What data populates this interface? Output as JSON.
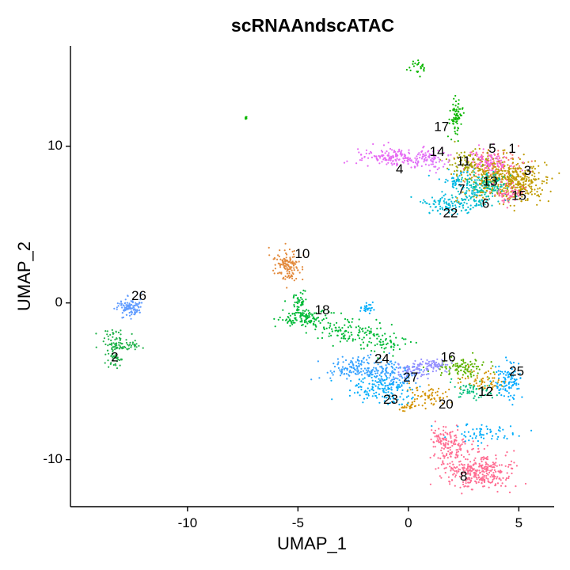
{
  "chart_data": {
    "type": "scatter",
    "title": "scRNAAndscATAC",
    "xlabel": "UMAP_1",
    "ylabel": "UMAP_2",
    "xlim": [
      -15.3,
      6.6
    ],
    "ylim": [
      -13.0,
      16.4
    ],
    "x_ticks": [
      -10,
      -5,
      0,
      5
    ],
    "y_ticks": [
      -10,
      0,
      10
    ],
    "x_tick_labels": [
      "-10",
      "-5",
      "0",
      "5"
    ],
    "y_tick_labels": [
      "-10",
      "0",
      "10"
    ],
    "grid": false,
    "legend": "none",
    "clusters": [
      {
        "label": "1",
        "color": "#F8766D",
        "label_pos": [
          4.7,
          9.8
        ],
        "blobs": [
          {
            "x": 3.9,
            "y": 8.8,
            "sx": 0.7,
            "sy": 0.5,
            "n": 110
          }
        ]
      },
      {
        "label": "2",
        "color": "#22B24C",
        "label_pos": [
          -13.3,
          -3.5
        ],
        "blobs": [
          {
            "x": -13.4,
            "y": -2.5,
            "sx": 0.3,
            "sy": 0.4,
            "n": 60
          },
          {
            "x": -12.8,
            "y": -2.7,
            "sx": 0.4,
            "sy": 0.15,
            "n": 40
          },
          {
            "x": -13.3,
            "y": -3.6,
            "sx": 0.2,
            "sy": 0.3,
            "n": 30
          }
        ]
      },
      {
        "label": "3",
        "color": "#C09B00",
        "label_pos": [
          5.4,
          8.4
        ],
        "blobs": [
          {
            "x": 4.2,
            "y": 7.9,
            "sx": 0.9,
            "sy": 0.7,
            "n": 380
          },
          {
            "x": 5.2,
            "y": 7.5,
            "sx": 0.5,
            "sy": 0.5,
            "n": 120
          }
        ]
      },
      {
        "label": "4",
        "color": "#E76BF3",
        "label_pos": [
          -0.4,
          8.5
        ],
        "blobs": [
          {
            "x": -0.7,
            "y": 9.3,
            "sx": 0.9,
            "sy": 0.3,
            "n": 170
          }
        ]
      },
      {
        "label": "5",
        "color": "#F564E3",
        "label_pos": [
          3.8,
          9.8
        ],
        "blobs": [
          {
            "x": 3.6,
            "y": 9.0,
            "sx": 0.5,
            "sy": 0.4,
            "n": 90
          }
        ]
      },
      {
        "label": "6",
        "color": "#00BFC4",
        "label_pos": [
          3.5,
          6.3
        ],
        "blobs": [
          {
            "x": 3.2,
            "y": 6.9,
            "sx": 0.6,
            "sy": 0.4,
            "n": 80
          }
        ]
      },
      {
        "label": "7",
        "color": "#00B8E7",
        "label_pos": [
          2.4,
          7.2
        ],
        "blobs": [
          {
            "x": 2.5,
            "y": 7.7,
            "sx": 0.5,
            "sy": 0.4,
            "n": 70
          }
        ]
      },
      {
        "label": "8",
        "color": "#FF6C91",
        "label_pos": [
          2.5,
          -11.1
        ],
        "blobs": [
          {
            "x": 3.2,
            "y": -10.8,
            "sx": 0.8,
            "sy": 0.6,
            "n": 320
          },
          {
            "x": 2.0,
            "y": -9.2,
            "sx": 0.5,
            "sy": 0.5,
            "n": 100
          },
          {
            "x": 1.5,
            "y": -8.6,
            "sx": 0.3,
            "sy": 0.3,
            "n": 40
          }
        ]
      },
      {
        "label": "10",
        "color": "#E38A3C",
        "label_pos": [
          -4.8,
          3.1
        ],
        "blobs": [
          {
            "x": -5.5,
            "y": 2.4,
            "sx": 0.3,
            "sy": 0.5,
            "n": 140
          }
        ]
      },
      {
        "label": "11",
        "color": "#A3A500",
        "label_pos": [
          2.5,
          9.0
        ],
        "blobs": [
          {
            "x": 2.7,
            "y": 8.9,
            "sx": 0.5,
            "sy": 0.4,
            "n": 80
          }
        ]
      },
      {
        "label": "12",
        "color": "#00BF7D",
        "label_pos": [
          3.5,
          -5.7
        ],
        "blobs": [
          {
            "x": 3.0,
            "y": -5.6,
            "sx": 0.5,
            "sy": 0.3,
            "n": 60
          }
        ]
      },
      {
        "label": "13",
        "color": "#00C19A",
        "label_pos": [
          3.7,
          7.7
        ],
        "blobs": [
          {
            "x": 3.6,
            "y": 7.6,
            "sx": 0.5,
            "sy": 0.4,
            "n": 90
          }
        ]
      },
      {
        "label": "14",
        "color": "#DE71F9",
        "label_pos": [
          1.3,
          9.6
        ],
        "blobs": [
          {
            "x": 1.0,
            "y": 9.1,
            "sx": 0.5,
            "sy": 0.3,
            "n": 70
          }
        ]
      },
      {
        "label": "15",
        "color": "#FF66A8",
        "label_pos": [
          5.0,
          6.8
        ],
        "blobs": [
          {
            "x": 4.6,
            "y": 7.0,
            "sx": 0.4,
            "sy": 0.3,
            "n": 60
          }
        ]
      },
      {
        "label": "16",
        "color": "#5BB300",
        "label_pos": [
          1.8,
          -3.5
        ],
        "blobs": [
          {
            "x": 2.5,
            "y": -4.2,
            "sx": 0.6,
            "sy": 0.3,
            "n": 100
          }
        ]
      },
      {
        "label": "17",
        "color": "#0CB702",
        "label_pos": [
          1.5,
          11.2
        ],
        "blobs": [
          {
            "x": 2.2,
            "y": 11.8,
            "sx": 0.15,
            "sy": 0.6,
            "n": 70
          },
          {
            "x": 0.4,
            "y": 15.0,
            "sx": 0.2,
            "sy": 0.2,
            "n": 25
          },
          {
            "x": -7.3,
            "y": 11.8,
            "sx": 0.05,
            "sy": 0.05,
            "n": 6
          }
        ]
      },
      {
        "label": "18",
        "color": "#00BA38",
        "label_pos": [
          -3.9,
          -0.5
        ],
        "blobs": [
          {
            "x": -4.7,
            "y": -1.0,
            "sx": 0.6,
            "sy": 0.3,
            "n": 130
          },
          {
            "x": -2.5,
            "y": -1.8,
            "sx": 0.7,
            "sy": 0.4,
            "n": 90
          },
          {
            "x": -1.0,
            "y": -2.6,
            "sx": 0.6,
            "sy": 0.3,
            "n": 60
          },
          {
            "x": -4.9,
            "y": 0.1,
            "sx": 0.2,
            "sy": 0.4,
            "n": 40
          }
        ]
      },
      {
        "label": "20",
        "color": "#D39200",
        "label_pos": [
          1.7,
          -6.5
        ],
        "blobs": [
          {
            "x": 0.8,
            "y": -5.9,
            "sx": 0.5,
            "sy": 0.3,
            "n": 60
          },
          {
            "x": 0.0,
            "y": -6.6,
            "sx": 0.2,
            "sy": 0.15,
            "n": 25
          },
          {
            "x": 3.5,
            "y": -5.0,
            "sx": 0.5,
            "sy": 0.3,
            "n": 60
          }
        ]
      },
      {
        "label": "22",
        "color": "#00BBDB",
        "label_pos": [
          1.9,
          5.7
        ],
        "blobs": [
          {
            "x": 2.0,
            "y": 6.3,
            "sx": 0.7,
            "sy": 0.3,
            "n": 100
          }
        ]
      },
      {
        "label": "23",
        "color": "#00ADFA",
        "label_pos": [
          -0.8,
          -6.2
        ],
        "blobs": [
          {
            "x": -1.3,
            "y": -5.6,
            "sx": 0.8,
            "sy": 0.4,
            "n": 150
          },
          {
            "x": -1.8,
            "y": -0.3,
            "sx": 0.2,
            "sy": 0.2,
            "n": 25
          },
          {
            "x": 3.3,
            "y": -8.3,
            "sx": 0.8,
            "sy": 0.3,
            "n": 60
          }
        ]
      },
      {
        "label": "24",
        "color": "#35A2FF",
        "label_pos": [
          -1.2,
          -3.6
        ],
        "blobs": [
          {
            "x": -2.0,
            "y": -4.2,
            "sx": 0.8,
            "sy": 0.4,
            "n": 160
          },
          {
            "x": -0.5,
            "y": -4.6,
            "sx": 0.6,
            "sy": 0.4,
            "n": 90
          }
        ]
      },
      {
        "label": "25",
        "color": "#00A9FF",
        "label_pos": [
          4.9,
          -4.4
        ],
        "blobs": [
          {
            "x": 4.5,
            "y": -5.0,
            "sx": 0.3,
            "sy": 0.6,
            "n": 100
          }
        ]
      },
      {
        "label": "26",
        "color": "#619CFF",
        "label_pos": [
          -12.2,
          0.4
        ],
        "blobs": [
          {
            "x": -12.6,
            "y": -0.3,
            "sx": 0.3,
            "sy": 0.3,
            "n": 110
          }
        ]
      },
      {
        "label": "27",
        "color": "#9590FF",
        "label_pos": [
          0.1,
          -4.8
        ],
        "blobs": [
          {
            "x": 0.4,
            "y": -4.2,
            "sx": 0.5,
            "sy": 0.3,
            "n": 80
          },
          {
            "x": 1.3,
            "y": -3.9,
            "sx": 0.4,
            "sy": 0.2,
            "n": 50
          }
        ]
      }
    ]
  }
}
